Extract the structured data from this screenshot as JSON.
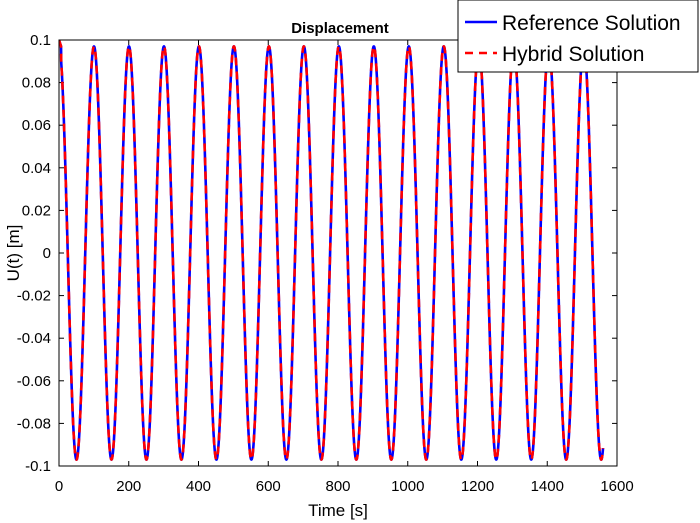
{
  "chart_data": {
    "type": "line",
    "title": "Displacement",
    "xlabel": "Time [s]",
    "ylabel": "U(t) [m]",
    "xlim": [
      0,
      1600
    ],
    "ylim": [
      -0.1,
      0.1
    ],
    "x_ticks": [
      0,
      200,
      400,
      600,
      800,
      1000,
      1200,
      1400,
      1600
    ],
    "y_ticks": [
      -0.1,
      -0.08,
      -0.06,
      -0.04,
      -0.02,
      0,
      0.02,
      0.04,
      0.06,
      0.08,
      0.1
    ],
    "x_tick_labels": [
      "0",
      "200",
      "400",
      "600",
      "800",
      "1000",
      "1200",
      "1400",
      "1600"
    ],
    "y_tick_labels": [
      "-0.1",
      "-0.08",
      "-0.06",
      "-0.04",
      "-0.02",
      "0",
      "0.02",
      "0.04",
      "0.06",
      "0.08",
      "0.1"
    ],
    "grid": false,
    "legend_position": "top-right, outside plot",
    "x_range": [
      0,
      1560
    ],
    "signal": {
      "form": "cosine",
      "amplitude": 0.097,
      "period_s": 100.3,
      "initial_value": 0.1
    },
    "series": [
      {
        "name": "Reference Solution",
        "color": "#0000ff",
        "style": "solid"
      },
      {
        "name": "Hybrid Solution",
        "color": "#ff0000",
        "style": "dashed"
      }
    ]
  }
}
